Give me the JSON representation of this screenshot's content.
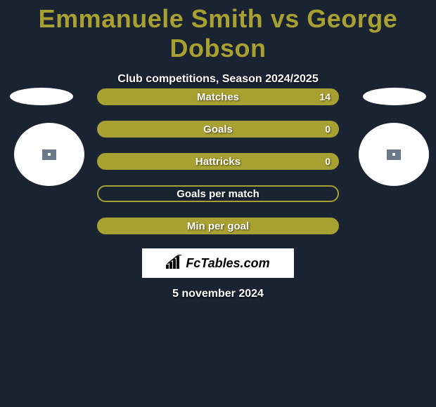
{
  "title": "Emmanuele Smith vs George Dobson",
  "subtitle": "Club competitions, Season 2024/2025",
  "date": "5 november 2024",
  "brand": "FcTables.com",
  "colors": {
    "background": "#1a2332",
    "title_color": "#a8a030",
    "bar_filled": "#a8a030",
    "bar_empty_border": "#a8a030",
    "text": "#ffffff"
  },
  "stats": [
    {
      "label": "Matches",
      "value": "14",
      "filled": true
    },
    {
      "label": "Goals",
      "value": "0",
      "filled": true
    },
    {
      "label": "Hattricks",
      "value": "0",
      "filled": true
    },
    {
      "label": "Goals per match",
      "value": "",
      "filled": false
    },
    {
      "label": "Min per goal",
      "value": "",
      "filled": true
    }
  ]
}
